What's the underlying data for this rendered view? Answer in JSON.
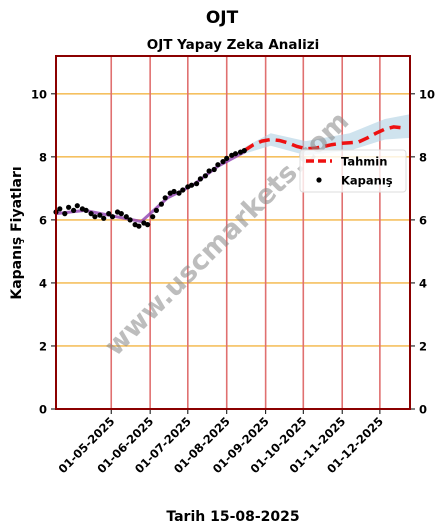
{
  "suptitle": "OJT",
  "chart_data": {
    "type": "line",
    "title": "OJT Yapay Zeka Analizi",
    "xlabel": "Tarih 15-08-2025",
    "ylabel": "Kapanış Fiyatları",
    "ylim": [
      0,
      11.2
    ],
    "yticks": [
      0,
      2,
      4,
      6,
      8,
      10
    ],
    "xlim": [
      "2025-03-18",
      "2025-12-25"
    ],
    "xticks": [
      "01-05-2025",
      "01-06-2025",
      "01-07-2025",
      "01-08-2025",
      "01-09-2025",
      "01-10-2025",
      "01-11-2025",
      "01-12-2025"
    ],
    "legend_position": "right",
    "grid": {
      "horizontal": true,
      "vertical": true
    },
    "watermark": "www.uscmarkets.com",
    "colors": {
      "axes_frame": "#8b0000",
      "horizontal_grid": "#f5c060",
      "vertical_grid": "#e07070",
      "forecast": "#ee1111",
      "actual": "#000000",
      "trend": "#9040b0",
      "band": "#a8cce0",
      "watermark": "#888888"
    },
    "series": [
      {
        "name": "Kapanış",
        "style": "dots",
        "points": [
          [
            "2025-03-18",
            6.25
          ],
          [
            "2025-03-21",
            6.35
          ],
          [
            "2025-03-25",
            6.2
          ],
          [
            "2025-03-28",
            6.4
          ],
          [
            "2025-04-01",
            6.3
          ],
          [
            "2025-04-04",
            6.45
          ],
          [
            "2025-04-08",
            6.35
          ],
          [
            "2025-04-11",
            6.3
          ],
          [
            "2025-04-15",
            6.2
          ],
          [
            "2025-04-18",
            6.1
          ],
          [
            "2025-04-22",
            6.15
          ],
          [
            "2025-04-25",
            6.05
          ],
          [
            "2025-04-29",
            6.2
          ],
          [
            "2025-05-02",
            6.1
          ],
          [
            "2025-05-06",
            6.25
          ],
          [
            "2025-05-09",
            6.2
          ],
          [
            "2025-05-13",
            6.1
          ],
          [
            "2025-05-16",
            6.0
          ],
          [
            "2025-05-20",
            5.85
          ],
          [
            "2025-05-23",
            5.8
          ],
          [
            "2025-05-27",
            5.9
          ],
          [
            "2025-05-30",
            5.85
          ],
          [
            "2025-06-03",
            6.1
          ],
          [
            "2025-06-06",
            6.3
          ],
          [
            "2025-06-10",
            6.5
          ],
          [
            "2025-06-13",
            6.7
          ],
          [
            "2025-06-17",
            6.85
          ],
          [
            "2025-06-20",
            6.9
          ],
          [
            "2025-06-24",
            6.85
          ],
          [
            "2025-06-27",
            6.95
          ],
          [
            "2025-07-01",
            7.05
          ],
          [
            "2025-07-04",
            7.1
          ],
          [
            "2025-07-08",
            7.15
          ],
          [
            "2025-07-11",
            7.3
          ],
          [
            "2025-07-15",
            7.4
          ],
          [
            "2025-07-18",
            7.55
          ],
          [
            "2025-07-22",
            7.6
          ],
          [
            "2025-07-25",
            7.75
          ],
          [
            "2025-07-29",
            7.85
          ],
          [
            "2025-08-01",
            7.95
          ],
          [
            "2025-08-05",
            8.05
          ],
          [
            "2025-08-08",
            8.1
          ],
          [
            "2025-08-12",
            8.15
          ],
          [
            "2025-08-15",
            8.2
          ]
        ]
      },
      {
        "name": "Tahmin",
        "style": "dashed",
        "points": [
          [
            "2025-08-15",
            8.2
          ],
          [
            "2025-08-22",
            8.38
          ],
          [
            "2025-08-29",
            8.5
          ],
          [
            "2025-09-05",
            8.55
          ],
          [
            "2025-09-12",
            8.52
          ],
          [
            "2025-09-19",
            8.44
          ],
          [
            "2025-09-26",
            8.33
          ],
          [
            "2025-10-03",
            8.26
          ],
          [
            "2025-10-10",
            8.27
          ],
          [
            "2025-10-17",
            8.33
          ],
          [
            "2025-10-24",
            8.39
          ],
          [
            "2025-10-31",
            8.43
          ],
          [
            "2025-11-07",
            8.45
          ],
          [
            "2025-11-14",
            8.47
          ],
          [
            "2025-11-21",
            8.6
          ],
          [
            "2025-11-28",
            8.75
          ],
          [
            "2025-12-05",
            8.88
          ],
          [
            "2025-12-12",
            8.95
          ],
          [
            "2025-12-19",
            8.92
          ]
        ]
      }
    ],
    "trend_line": [
      [
        "2025-03-18",
        6.2
      ],
      [
        "2025-04-10",
        6.3
      ],
      [
        "2025-05-05",
        6.1
      ],
      [
        "2025-05-25",
        5.95
      ],
      [
        "2025-06-15",
        6.7
      ],
      [
        "2025-07-05",
        7.1
      ],
      [
        "2025-07-25",
        7.7
      ],
      [
        "2025-08-15",
        8.15
      ]
    ],
    "confidence_band": [
      [
        "2025-08-15",
        8.1,
        8.3
      ],
      [
        "2025-09-05",
        8.35,
        8.75
      ],
      [
        "2025-10-03",
        8.05,
        8.5
      ],
      [
        "2025-11-07",
        8.2,
        8.75
      ],
      [
        "2025-12-05",
        8.55,
        9.2
      ],
      [
        "2025-12-25",
        8.6,
        9.35
      ]
    ]
  }
}
